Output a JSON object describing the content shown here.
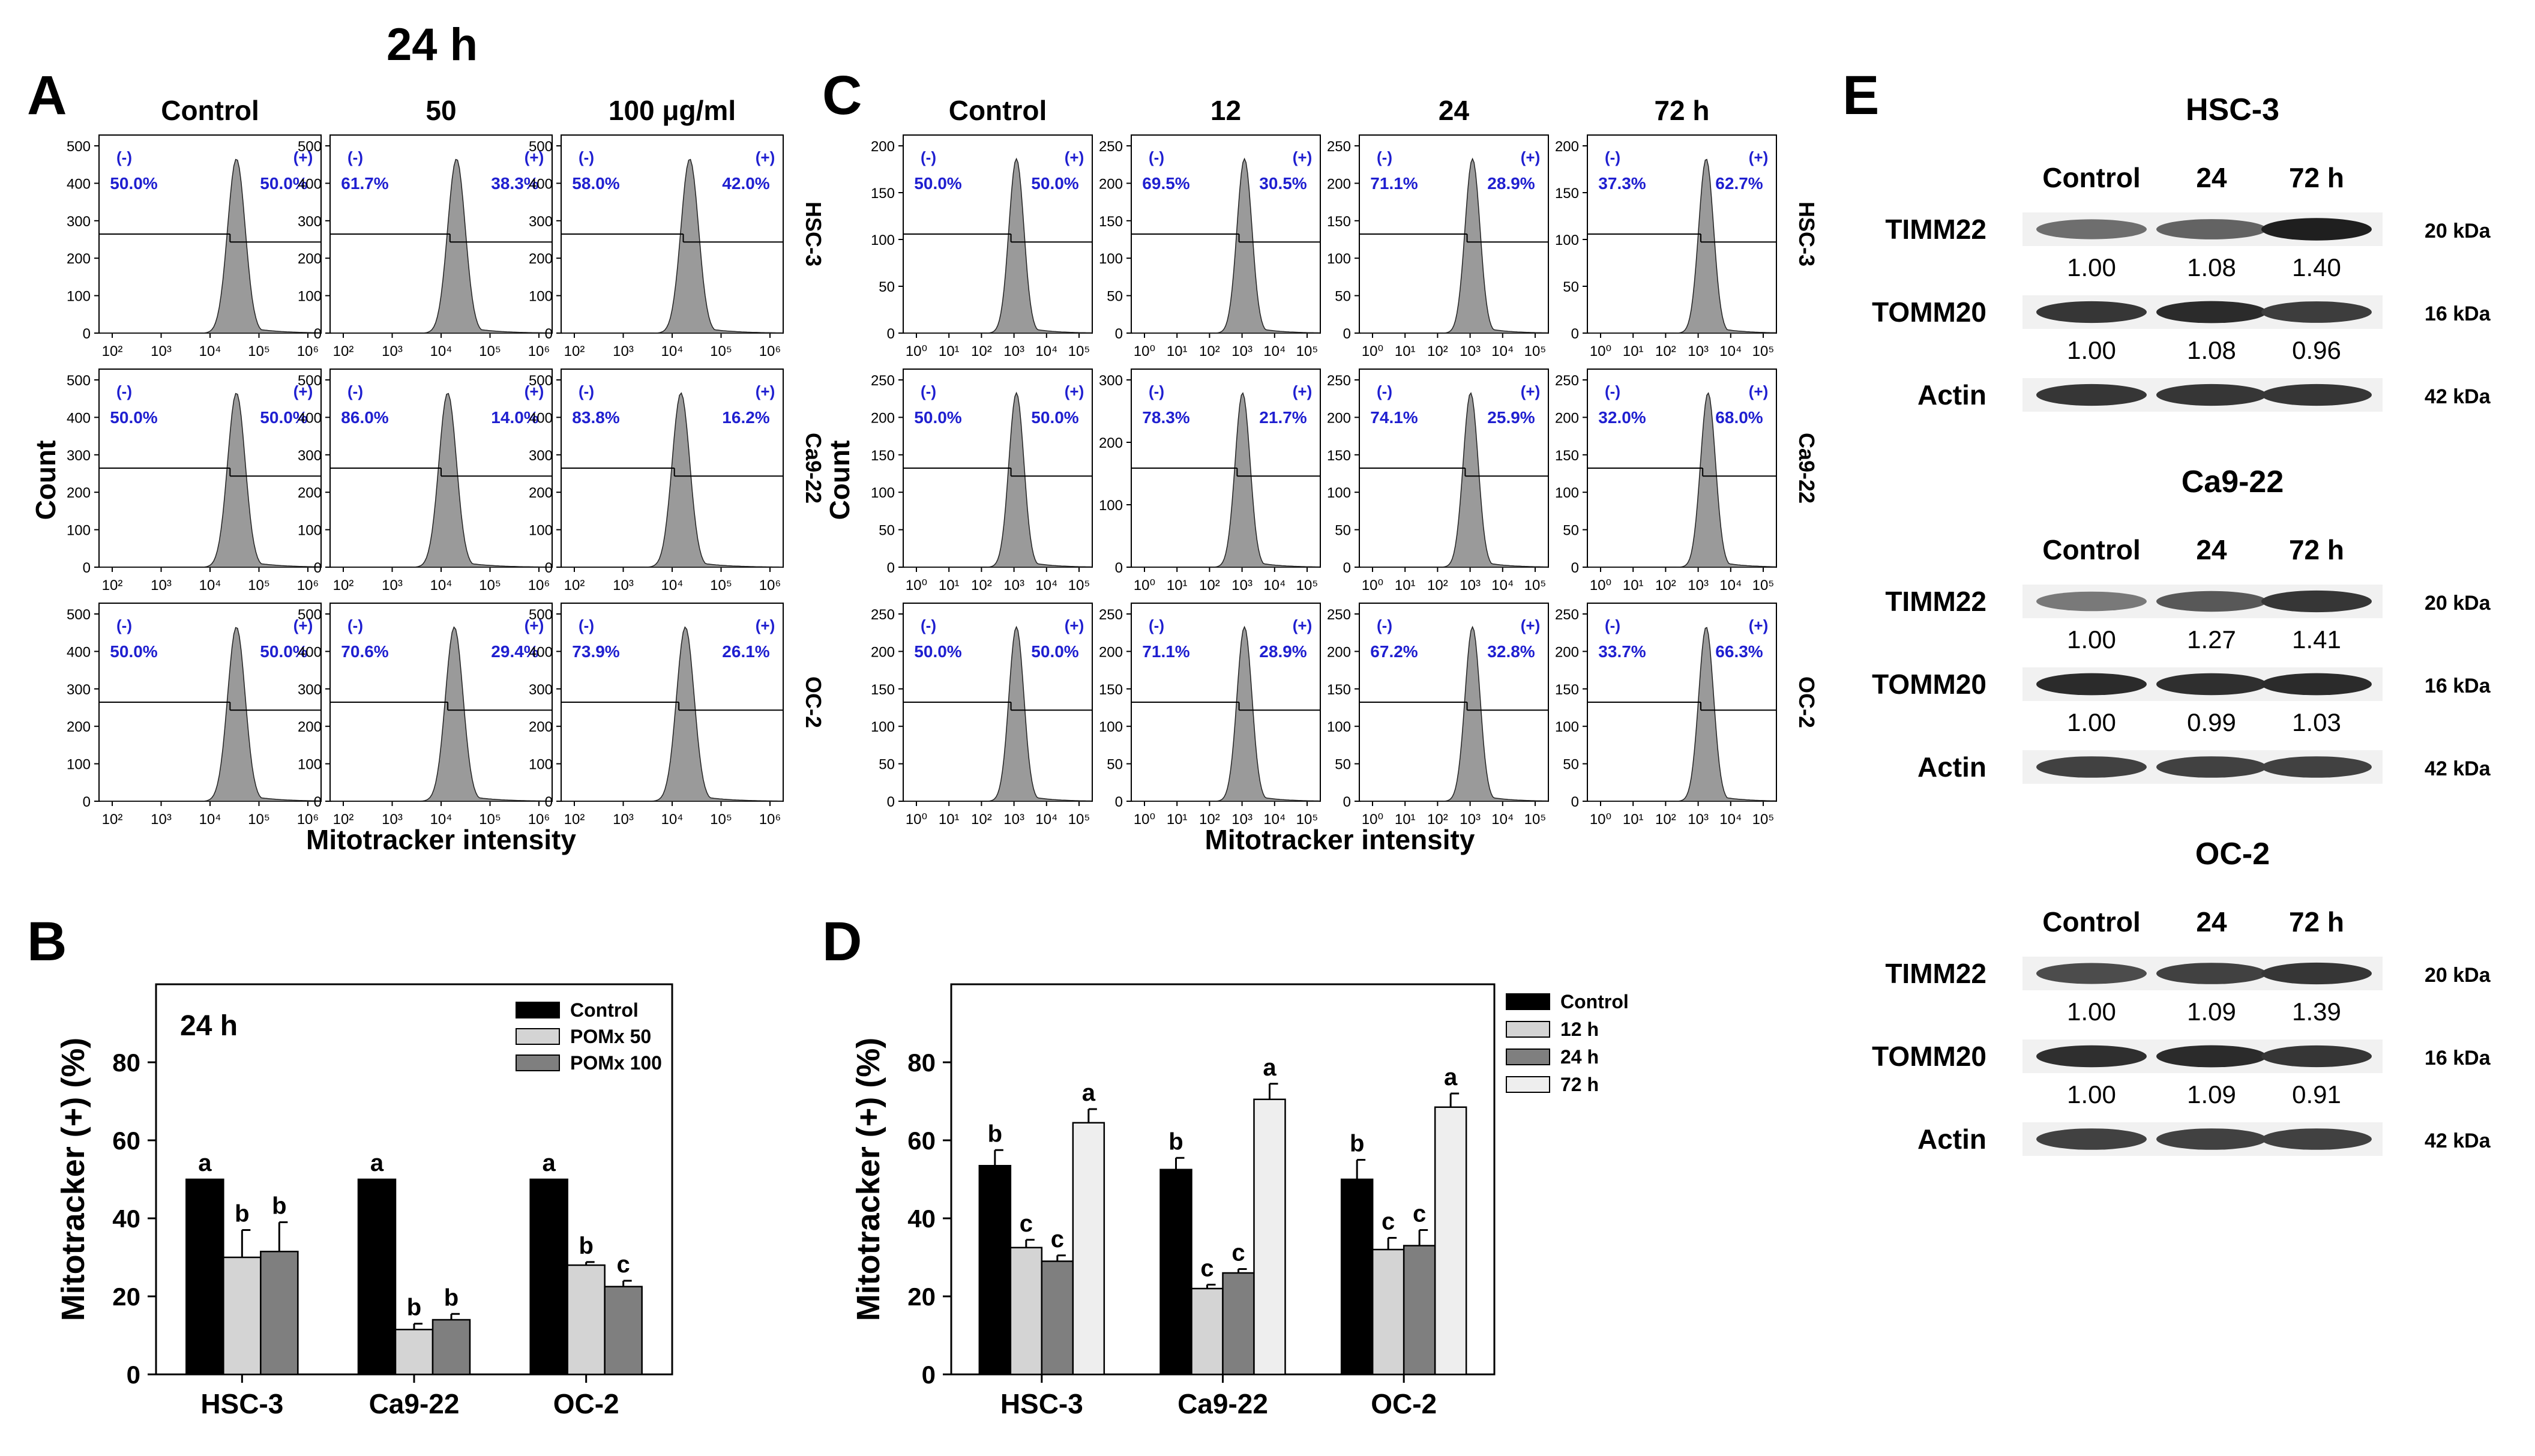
{
  "chart_data": [
    {
      "panel": "A",
      "type": "histogram",
      "title": "24 h",
      "columns": [
        "Control",
        "50",
        "100 μg/ml"
      ],
      "rows": [
        "HSC-3",
        "Ca9-22",
        "OC-2"
      ],
      "xlabel": "Mitotracker intensity",
      "ylabel": "Count",
      "x_ticks": [
        "10²",
        "10³",
        "10⁴",
        "10⁵",
        "10⁶"
      ],
      "neg_label": "(-)",
      "pos_label": "(+)",
      "cells": [
        {
          "row": "HSC-3",
          "col": "Control",
          "neg": "50.0%",
          "pos": "50.0%",
          "yticks": [
            "0",
            "100",
            "200",
            "300",
            "400",
            "500"
          ],
          "ymax": 500,
          "peak": 0.62
        },
        {
          "row": "HSC-3",
          "col": "50",
          "neg": "61.7%",
          "pos": "38.3%",
          "yticks": [
            "0",
            "100",
            "200",
            "300",
            "400",
            "500"
          ],
          "ymax": 500,
          "peak": 0.57
        },
        {
          "row": "HSC-3",
          "col": "100 μg/ml",
          "neg": "58.0%",
          "pos": "42.0%",
          "yticks": [
            "0",
            "100",
            "200",
            "300",
            "400",
            "500"
          ],
          "ymax": 500,
          "peak": 0.58
        },
        {
          "row": "Ca9-22",
          "col": "Control",
          "neg": "50.0%",
          "pos": "50.0%",
          "yticks": [
            "0",
            "100",
            "200",
            "300",
            "400",
            "500"
          ],
          "ymax": 500,
          "peak": 0.62
        },
        {
          "row": "Ca9-22",
          "col": "50",
          "neg": "86.0%",
          "pos": "14.0%",
          "yticks": [
            "0",
            "100",
            "200",
            "300",
            "400",
            "500"
          ],
          "ymax": 500,
          "peak": 0.53
        },
        {
          "row": "Ca9-22",
          "col": "100 μg/ml",
          "neg": "83.8%",
          "pos": "16.2%",
          "yticks": [
            "0",
            "100",
            "200",
            "300",
            "400",
            "500"
          ],
          "ymax": 500,
          "peak": 0.54
        },
        {
          "row": "OC-2",
          "col": "Control",
          "neg": "50.0%",
          "pos": "50.0%",
          "yticks": [
            "0",
            "100",
            "200",
            "300",
            "400",
            "500"
          ],
          "ymax": 500,
          "peak": 0.62
        },
        {
          "row": "OC-2",
          "col": "50",
          "neg": "70.6%",
          "pos": "29.4%",
          "yticks": [
            "0",
            "100",
            "200",
            "300",
            "400",
            "500"
          ],
          "ymax": 500,
          "peak": 0.56
        },
        {
          "row": "OC-2",
          "col": "100 μg/ml",
          "neg": "73.9%",
          "pos": "26.1%",
          "yticks": [
            "0",
            "100",
            "200",
            "300",
            "400",
            "500"
          ],
          "ymax": 500,
          "peak": 0.56
        }
      ]
    },
    {
      "panel": "B",
      "type": "bar",
      "title": "24 h",
      "categories": [
        "HSC-3",
        "Ca9-22",
        "OC-2"
      ],
      "series": [
        {
          "name": "Control",
          "color": "#000000",
          "values": [
            50,
            50,
            50
          ],
          "err": [
            0,
            0,
            0
          ],
          "letters": [
            "a",
            "a",
            "a"
          ]
        },
        {
          "name": "POMx 50",
          "color": "#d4d4d4",
          "values": [
            30,
            11.5,
            28
          ],
          "err": [
            7,
            1.5,
            0.8
          ],
          "letters": [
            "b",
            "b",
            "b"
          ]
        },
        {
          "name": "POMx 100",
          "color": "#7f7f7f",
          "values": [
            31.5,
            14,
            22.5
          ],
          "err": [
            7.5,
            1.5,
            1.5
          ],
          "letters": [
            "b",
            "b",
            "c"
          ]
        }
      ],
      "ylabel": "Mitotracker (+) (%)",
      "ylim": [
        0,
        100
      ],
      "yticks": [
        "0",
        "20",
        "40",
        "60",
        "80"
      ],
      "legend": "top-right"
    },
    {
      "panel": "C",
      "type": "histogram",
      "columns": [
        "Control",
        "12",
        "24",
        "72 h"
      ],
      "rows": [
        "HSC-3",
        "Ca9-22",
        "OC-2"
      ],
      "xlabel": "Mitotracker intensity",
      "ylabel": "Count",
      "x_ticks": [
        "10⁰",
        "10¹",
        "10²",
        "10³",
        "10⁴",
        "10⁵"
      ],
      "neg_label": "(-)",
      "pos_label": "(+)",
      "cells": [
        {
          "row": "HSC-3",
          "col": "Control",
          "neg": "50.0%",
          "pos": "50.0%",
          "yticks": [
            "0",
            "50",
            "100",
            "150",
            "200"
          ],
          "ymax": 200,
          "peak": 0.6
        },
        {
          "row": "HSC-3",
          "col": "12",
          "neg": "69.5%",
          "pos": "30.5%",
          "yticks": [
            "0",
            "50",
            "100",
            "150",
            "200",
            "250"
          ],
          "ymax": 250,
          "peak": 0.6
        },
        {
          "row": "HSC-3",
          "col": "24",
          "neg": "71.1%",
          "pos": "28.9%",
          "yticks": [
            "0",
            "50",
            "100",
            "150",
            "200",
            "250"
          ],
          "ymax": 250,
          "peak": 0.6
        },
        {
          "row": "HSC-3",
          "col": "72 h",
          "neg": "37.3%",
          "pos": "62.7%",
          "yticks": [
            "0",
            "50",
            "100",
            "150",
            "200"
          ],
          "ymax": 200,
          "peak": 0.63
        },
        {
          "row": "Ca9-22",
          "col": "Control",
          "neg": "50.0%",
          "pos": "50.0%",
          "yticks": [
            "0",
            "50",
            "100",
            "150",
            "200",
            "250"
          ],
          "ymax": 250,
          "peak": 0.6
        },
        {
          "row": "Ca9-22",
          "col": "12",
          "neg": "78.3%",
          "pos": "21.7%",
          "yticks": [
            "0",
            "100",
            "200",
            "300"
          ],
          "ymax": 300,
          "peak": 0.59
        },
        {
          "row": "Ca9-22",
          "col": "24",
          "neg": "74.1%",
          "pos": "25.9%",
          "yticks": [
            "0",
            "50",
            "100",
            "150",
            "200",
            "250"
          ],
          "ymax": 250,
          "peak": 0.59
        },
        {
          "row": "Ca9-22",
          "col": "72 h",
          "neg": "32.0%",
          "pos": "68.0%",
          "yticks": [
            "0",
            "50",
            "100",
            "150",
            "200",
            "250"
          ],
          "ymax": 250,
          "peak": 0.64
        },
        {
          "row": "OC-2",
          "col": "Control",
          "neg": "50.0%",
          "pos": "50.0%",
          "yticks": [
            "0",
            "50",
            "100",
            "150",
            "200",
            "250"
          ],
          "ymax": 250,
          "peak": 0.6
        },
        {
          "row": "OC-2",
          "col": "12",
          "neg": "71.1%",
          "pos": "28.9%",
          "yticks": [
            "0",
            "50",
            "100",
            "150",
            "200",
            "250"
          ],
          "ymax": 250,
          "peak": 0.6
        },
        {
          "row": "OC-2",
          "col": "24",
          "neg": "67.2%",
          "pos": "32.8%",
          "yticks": [
            "0",
            "50",
            "100",
            "150",
            "200",
            "250"
          ],
          "ymax": 250,
          "peak": 0.6
        },
        {
          "row": "OC-2",
          "col": "72 h",
          "neg": "33.7%",
          "pos": "66.3%",
          "yticks": [
            "0",
            "50",
            "100",
            "150",
            "200",
            "250"
          ],
          "ymax": 250,
          "peak": 0.63
        }
      ]
    },
    {
      "panel": "D",
      "type": "bar",
      "categories": [
        "HSC-3",
        "Ca9-22",
        "OC-2"
      ],
      "series": [
        {
          "name": "Control",
          "color": "#000000",
          "values": [
            53.5,
            52.5,
            50
          ],
          "err": [
            4,
            3,
            5
          ],
          "letters": [
            "b",
            "b",
            "b"
          ]
        },
        {
          "name": "12 h",
          "color": "#d4d4d4",
          "values": [
            32.5,
            22,
            32
          ],
          "err": [
            2,
            1,
            3
          ],
          "letters": [
            "c",
            "c",
            "c"
          ]
        },
        {
          "name": "24 h",
          "color": "#7f7f7f",
          "values": [
            29,
            26,
            33
          ],
          "err": [
            1.5,
            1,
            4
          ],
          "letters": [
            "c",
            "c",
            "c"
          ]
        },
        {
          "name": "72 h",
          "color": "#eeeeee",
          "values": [
            64.5,
            70.5,
            68.5
          ],
          "err": [
            3.5,
            4,
            3.5
          ],
          "letters": [
            "a",
            "a",
            "a"
          ]
        }
      ],
      "ylabel": "Mitotracker (+) (%)",
      "ylim": [
        0,
        100
      ],
      "yticks": [
        "0",
        "20",
        "40",
        "60",
        "80"
      ],
      "legend": "outside-right"
    },
    {
      "panel": "E",
      "type": "western-blot",
      "blocks": [
        {
          "cell_line": "HSC-3",
          "lanes": [
            "Control",
            "24",
            "72 h"
          ],
          "proteins": [
            {
              "name": "TIMM22",
              "size": "20 kDa",
              "quant": [
                "1.00",
                "1.08",
                "1.40"
              ],
              "intensity": [
                0.6,
                0.65,
                0.95
              ]
            },
            {
              "name": "TOMM20",
              "size": "16 kDa",
              "quant": [
                "1.00",
                "1.08",
                "0.96"
              ],
              "intensity": [
                0.85,
                0.9,
                0.82
              ]
            },
            {
              "name": "Actin",
              "size": "42 kDa",
              "quant": [],
              "intensity": [
                0.85,
                0.85,
                0.85
              ]
            }
          ]
        },
        {
          "cell_line": "Ca9-22",
          "lanes": [
            "Control",
            "24",
            "72 h"
          ],
          "proteins": [
            {
              "name": "TIMM22",
              "size": "20 kDa",
              "quant": [
                "1.00",
                "1.27",
                "1.41"
              ],
              "intensity": [
                0.55,
                0.7,
                0.85
              ]
            },
            {
              "name": "TOMM20",
              "size": "16 kDa",
              "quant": [
                "1.00",
                "0.99",
                "1.03"
              ],
              "intensity": [
                0.9,
                0.88,
                0.9
              ]
            },
            {
              "name": "Actin",
              "size": "42 kDa",
              "quant": [],
              "intensity": [
                0.8,
                0.8,
                0.8
              ]
            }
          ]
        },
        {
          "cell_line": "OC-2",
          "lanes": [
            "Control",
            "24",
            "72 h"
          ],
          "proteins": [
            {
              "name": "TIMM22",
              "size": "20 kDa",
              "quant": [
                "1.00",
                "1.09",
                "1.39"
              ],
              "intensity": [
                0.75,
                0.8,
                0.85
              ]
            },
            {
              "name": "TOMM20",
              "size": "16 kDa",
              "quant": [
                "1.00",
                "1.09",
                "0.91"
              ],
              "intensity": [
                0.88,
                0.9,
                0.85
              ]
            },
            {
              "name": "Actin",
              "size": "42 kDa",
              "quant": [],
              "intensity": [
                0.8,
                0.8,
                0.8
              ]
            }
          ]
        }
      ]
    }
  ]
}
